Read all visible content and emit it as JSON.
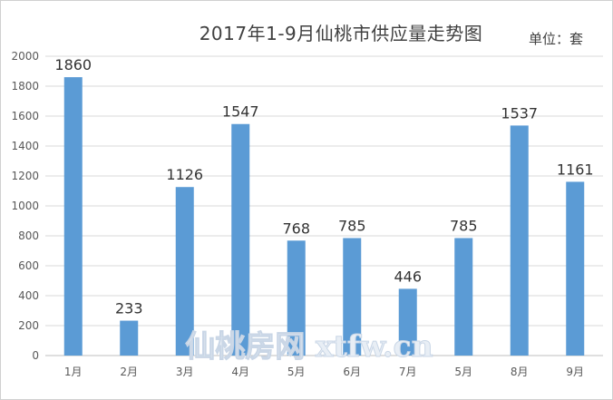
{
  "chart_data": {
    "type": "bar",
    "title": "2017年1-9月仙桃市供应量走势图",
    "unit_label": "单位：套",
    "categories": [
      "1月",
      "2月",
      "3月",
      "4月",
      "5月",
      "6月",
      "7月",
      "5月",
      "8月",
      "9月"
    ],
    "values": [
      1860,
      233,
      1126,
      1547,
      768,
      785,
      446,
      785,
      1537,
      1161
    ],
    "ylim": [
      0,
      2000
    ],
    "yticks": [
      0,
      200,
      400,
      600,
      800,
      1000,
      1200,
      1400,
      1600,
      1800,
      2000
    ],
    "grid": true,
    "bar_color": "#5b9bd5",
    "watermark": "仙桃房网 xtfw.cn"
  }
}
